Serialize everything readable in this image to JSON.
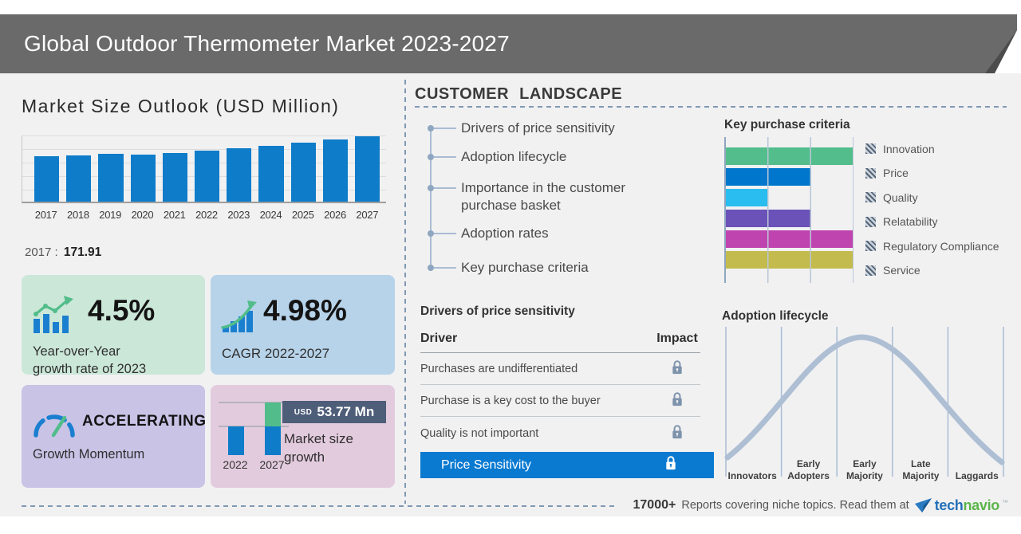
{
  "header": {
    "title": "Global Outdoor Thermometer Market 2023-2027"
  },
  "market_size": {
    "title": "Market Size Outlook (USD Million)",
    "base_year": "2017",
    "separator": ":",
    "base_value": "171.91"
  },
  "stats": {
    "yoy_value": "4.5%",
    "yoy_label": "Year-over-Year growth rate of 2023",
    "cagr_value": "4.98%",
    "cagr_label": "CAGR 2022-2027",
    "momentum_value": "ACCELERATING",
    "momentum_label": "Growth Momentum",
    "growth_currency": "USD",
    "growth_amount": "53.77 Mn",
    "growth_label": "Market size growth",
    "growth_year_start": "2022",
    "growth_year_end": "2027"
  },
  "customer_landscape": {
    "title": "CUSTOMER LANDSCAPE",
    "items": [
      "Drivers of price sensitivity",
      "Adoption lifecycle",
      "Importance in the customer purchase basket",
      "Adoption rates",
      "Key purchase criteria"
    ]
  },
  "price_sensitivity": {
    "title": "Drivers of price sensitivity",
    "col_driver": "Driver",
    "col_impact": "Impact",
    "rows": [
      "Purchases are undifferentiated",
      "Purchase is a key cost to the buyer",
      "Quality is not important"
    ],
    "highlight": "Price Sensitivity"
  },
  "purchase_criteria": {
    "title": "Key purchase criteria"
  },
  "adoption": {
    "title": "Adoption lifecycle"
  },
  "footer": {
    "count": "17000+",
    "text": "Reports covering niche topics. Read them at",
    "brand_blue": "tech",
    "brand_green": "navio",
    "brand_tm": "™"
  },
  "chart_data": [
    {
      "name": "market-size-outlook",
      "type": "bar",
      "title": "Market Size Outlook (USD Million)",
      "unit": "USD Million",
      "categories": [
        "2017",
        "2018",
        "2019",
        "2020",
        "2021",
        "2022",
        "2023",
        "2024",
        "2025",
        "2026",
        "2027"
      ],
      "values": [
        171.91,
        176.5,
        183.2,
        179.4,
        186.0,
        195.24,
        204.03,
        213.4,
        224.6,
        236.1,
        249.01
      ],
      "ylim": [
        0,
        252
      ],
      "grid": true,
      "bar_color": "#0e7cc9"
    },
    {
      "name": "key-purchase-criteria",
      "type": "bar",
      "orientation": "horizontal",
      "title": "Key purchase criteria",
      "categories": [
        "Innovation",
        "Price",
        "Quality",
        "Relatability",
        "Regulatory Compliance",
        "Service"
      ],
      "values_pct": [
        100,
        66.7,
        33.3,
        66.7,
        100,
        100
      ],
      "colors": [
        "#53bd8c",
        "#0077cc",
        "#29bdf0",
        "#6a52b8",
        "#c044b0",
        "#c3bb4e"
      ],
      "legend_position": "right"
    },
    {
      "name": "market-size-growth",
      "type": "bar",
      "title": "Market size growth",
      "categories": [
        "2022",
        "2027"
      ],
      "base_values": [
        195.24,
        195.24
      ],
      "growth_values": [
        0,
        53.77
      ],
      "annotation": "USD 53.77 Mn"
    },
    {
      "name": "adoption-lifecycle",
      "type": "area",
      "curve": "bell",
      "title": "Adoption lifecycle",
      "categories": [
        "Innovators",
        "Early Adopters",
        "Early Majority",
        "Late Majority",
        "Laggards"
      ]
    }
  ]
}
